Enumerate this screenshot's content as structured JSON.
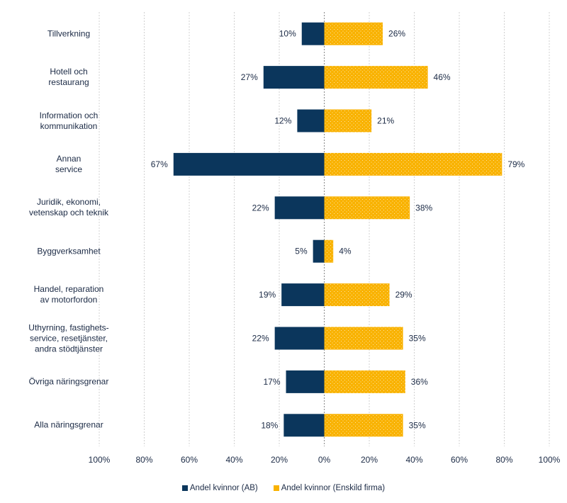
{
  "chart_data": {
    "type": "bar",
    "orientation": "horizontal-diverging",
    "title": "",
    "xlabel": "",
    "ylabel": "",
    "xlim": [
      -100,
      100
    ],
    "grid": true,
    "legend_placement": "bottom",
    "tick_labels": [
      "100%",
      "80%",
      "60%",
      "40%",
      "20%",
      "0%",
      "20%",
      "40%",
      "60%",
      "80%",
      "100%"
    ],
    "categories": [
      "Tillverkning",
      "Hotell och\nrestaurang",
      "Information och\nkommunikation",
      "Annan\nservice",
      "Juridik, ekonomi,\nvetenskap och teknik",
      "Byggverksamhet",
      "Handel, reparation\nav motorfordon",
      "Uthyrning, fastighets-\nservice, resetjänster,\nandra stödtjänster",
      "Övriga näringsgrenar",
      "Alla näringsgrenar"
    ],
    "series": [
      {
        "name": "Andel kvinnor (AB)",
        "direction": "left",
        "color": "#0b365c",
        "values": [
          10,
          27,
          12,
          67,
          22,
          5,
          19,
          22,
          17,
          18
        ]
      },
      {
        "name": "Andel kvinnor (Enskild firma)",
        "direction": "right",
        "color": "#f9b200",
        "pattern": "dotted",
        "values": [
          26,
          46,
          21,
          79,
          38,
          4,
          29,
          35,
          36,
          35
        ]
      }
    ]
  }
}
